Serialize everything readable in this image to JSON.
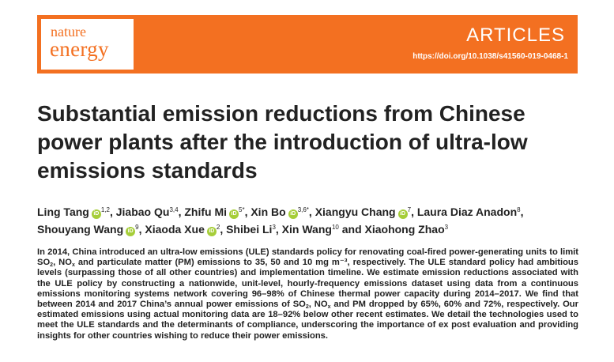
{
  "header": {
    "journal_line1": "nature",
    "journal_line2": "energy",
    "section": "ARTICLES",
    "doi": "https://doi.org/10.1038/s41560-019-0468-1"
  },
  "colors": {
    "brand": "#f37021",
    "orcid": "#a6ce39"
  },
  "title": "Substantial emission reductions from Chinese power plants after the introduction of ultra-low emissions standards",
  "authors": [
    {
      "name": "Ling Tang",
      "orcid": true,
      "aff": "1,2"
    },
    {
      "name": "Jiabao Qu",
      "orcid": false,
      "aff": "3,4"
    },
    {
      "name": "Zhifu Mi",
      "orcid": true,
      "aff": "5*"
    },
    {
      "name": "Xin Bo",
      "orcid": true,
      "aff": "3,6*"
    },
    {
      "name": "Xiangyu Chang",
      "orcid": true,
      "aff": "7"
    },
    {
      "name": "Laura Diaz Anadon",
      "orcid": false,
      "aff": "8"
    },
    {
      "name": "Shouyang Wang",
      "orcid": true,
      "aff": "9"
    },
    {
      "name": "Xiaoda Xue",
      "orcid": true,
      "aff": "2"
    },
    {
      "name": "Shibei Li",
      "orcid": false,
      "aff": "3"
    },
    {
      "name": "Xin Wang",
      "orcid": false,
      "aff": "10"
    },
    {
      "name": "Xiaohong Zhao",
      "orcid": false,
      "aff": "3"
    }
  ],
  "author_separator": ", ",
  "author_last_separator": " and ",
  "orcid_icon_text": "iD",
  "abstract": {
    "p1": "In 2014, China introduced an ultra-low emissions (ULE) standards policy for renovating coal-fired power-generating units to limit SO",
    "sub1": "2",
    "p2": ", NO",
    "sub2": "x",
    "p3": " and particulate matter (PM) emissions to 35, 50 and 10 mg m⁻³, respectively. The ULE standard policy had ambitious levels (surpassing those of all other countries) and implementation timeline. We estimate emission reductions associated with the ULE policy by constructing a nationwide, unit-level, hourly-frequency emissions dataset using data from a continuous emissions monitoring systems network covering 96–98% of Chinese thermal power capacity during 2014–2017. We find that between 2014 and 2017 China’s annual power emissions of SO",
    "sub3": "2",
    "p4": ", NO",
    "sub4": "x",
    "p5": " and PM dropped by 65%, 60% and 72%, respectively. Our estimated emissions using actual monitoring data are 18–92% below other recent estimates. We detail the technologies used to meet the ULE standards and the determinants of compliance, underscoring the importance of ex post evaluation and providing insights for other countries wishing to reduce their power emissions."
  }
}
